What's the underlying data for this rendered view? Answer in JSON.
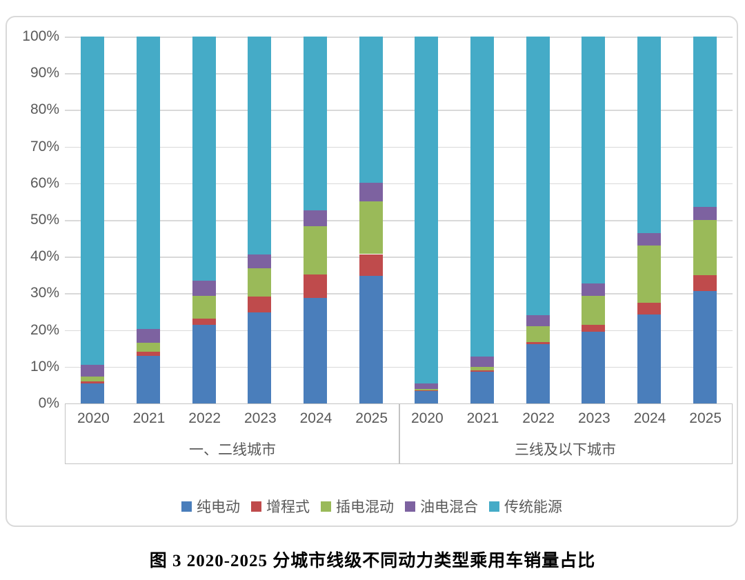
{
  "caption": "图 3 2020-2025 分城市线级不同动力类型乘用车销量占比",
  "colors": {
    "bev_blue": "#4a7ebb",
    "erev_red": "#bf4b4c",
    "phev_green": "#9aba59",
    "hev_purple": "#7d62a0",
    "ice_cyan": "#45abc7",
    "gridline": "#d9d9d9",
    "axis_text": "#595959",
    "frame_border": "#d9d9d9"
  },
  "chart_data": {
    "type": "bar",
    "stacked": true,
    "percent_stacked": true,
    "unit": "%",
    "ylim": [
      0,
      100
    ],
    "grid": true,
    "legend_position": "bottom",
    "y_ticks": [
      "0%",
      "10%",
      "20%",
      "30%",
      "40%",
      "50%",
      "60%",
      "70%",
      "80%",
      "90%",
      "100%"
    ],
    "series": [
      {
        "name": "纯电动",
        "color": "#4a7ebb"
      },
      {
        "name": "增程式",
        "color": "#bf4b4c"
      },
      {
        "name": "插电混动",
        "color": "#9aba59"
      },
      {
        "name": "油电混合",
        "color": "#7d62a0"
      },
      {
        "name": "传统能源",
        "color": "#45abc7"
      }
    ],
    "groups": [
      {
        "label": "一、二线城市",
        "categories": [
          "2020",
          "2021",
          "2022",
          "2023",
          "2024",
          "2025"
        ],
        "values": [
          [
            5.5,
            0.6,
            1.2,
            3.2,
            89.5
          ],
          [
            13.0,
            1.1,
            2.5,
            3.7,
            79.7
          ],
          [
            21.4,
            1.8,
            6.1,
            4.2,
            66.5
          ],
          [
            24.8,
            4.3,
            7.8,
            3.7,
            59.4
          ],
          [
            28.8,
            6.3,
            13.3,
            4.3,
            47.3
          ],
          [
            34.8,
            5.9,
            14.4,
            5.0,
            39.9
          ]
        ]
      },
      {
        "label": "三线及以下城市",
        "categories": [
          "2020",
          "2021",
          "2022",
          "2023",
          "2024",
          "2025"
        ],
        "values": [
          [
            3.3,
            0.2,
            0.5,
            1.5,
            94.5
          ],
          [
            8.6,
            0.4,
            1.0,
            2.7,
            87.3
          ],
          [
            16.2,
            0.6,
            4.3,
            3.0,
            75.9
          ],
          [
            19.5,
            2.0,
            7.8,
            3.5,
            67.2
          ],
          [
            24.3,
            3.2,
            15.5,
            3.5,
            53.5
          ],
          [
            30.7,
            4.2,
            15.1,
            3.6,
            46.4
          ]
        ]
      }
    ]
  }
}
